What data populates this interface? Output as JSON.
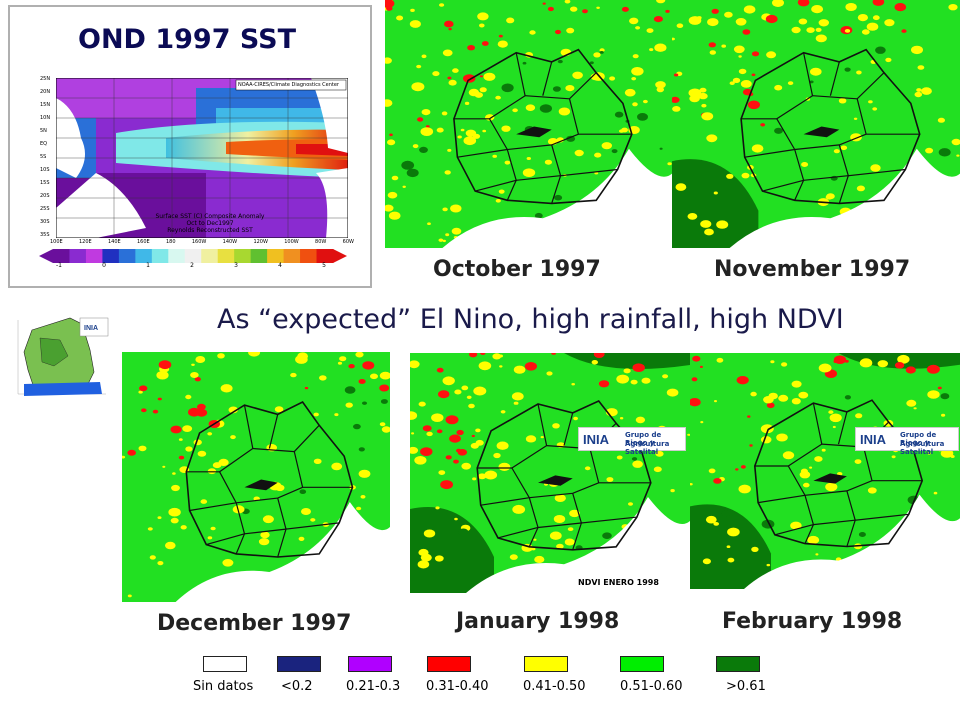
{
  "sst": {
    "title": "OND 1997 SST",
    "header": "NOAA-CIRES/Climate Diagnostics Center",
    "caption_line1": "Surface SST (C) Composite Anomaly",
    "caption_line2": "Oct to Dec1997",
    "caption_line3": "Reynolds Reconstructed SST",
    "lat_ticks": [
      "25N",
      "20N",
      "15N",
      "10N",
      "5N",
      "EQ",
      "5S",
      "10S",
      "15S",
      "20S",
      "25S",
      "30S",
      "35S"
    ],
    "lon_ticks": [
      "100E",
      "120E",
      "140E",
      "160E",
      "180",
      "160W",
      "140W",
      "120W",
      "100W",
      "80W",
      "60W"
    ],
    "colorbar_ticks": [
      "-1",
      "0",
      "1",
      "2",
      "3",
      "4",
      "5"
    ],
    "colorbar_colors": [
      "#6a0f9c",
      "#8a2bd0",
      "#c03ae0",
      "#2030c0",
      "#2a70d8",
      "#40b8e8",
      "#80e8e8",
      "#d8f8f0",
      "#f0f0f0",
      "#f0f0a0",
      "#e8e040",
      "#a8d830",
      "#60c030",
      "#f0c020",
      "#f09020",
      "#f05010",
      "#e01010"
    ]
  },
  "headline": "As “expected” El Nino, high rainfall, high NDVI",
  "months": {
    "oct_label": "October 1997",
    "nov_label": "November 1997",
    "dec_label": "December 1997",
    "jan_label": "January 1998",
    "feb_label": "February 1998"
  },
  "logo": {
    "org": "INIA",
    "line1": "Grupo de Riego y",
    "line2": "Agricultura Satelital"
  },
  "jan_caption": "NDVI ENERO 1998",
  "legend": [
    {
      "label": "Sin datos",
      "color": "#ffffff"
    },
    {
      "label": "<0.2",
      "color": "#1a237e"
    },
    {
      "label": "0.21-0.3",
      "color": "#b000ff"
    },
    {
      "label": "0.31-0.40",
      "color": "#ff0000"
    },
    {
      "label": "0.41-0.50",
      "color": "#ffff00"
    },
    {
      "label": "0.51-0.60",
      "color": "#00ee00"
    },
    {
      "label": ">0.61",
      "color": "#0a7a0a"
    }
  ]
}
